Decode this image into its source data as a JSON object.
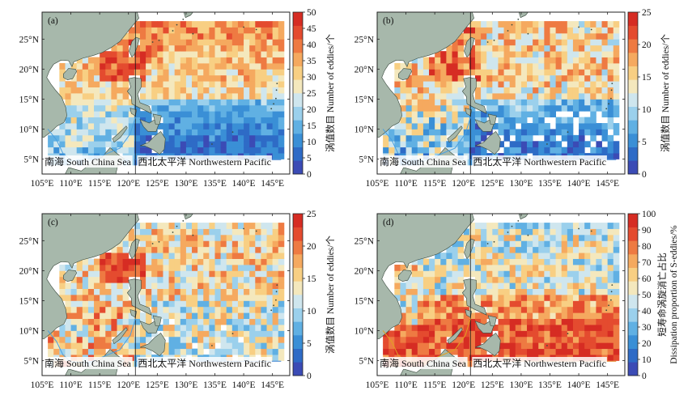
{
  "chart_data": [
    {
      "type": "heatmap",
      "panel_label": "(a)",
      "title": "",
      "xlabel": "",
      "ylabel": "",
      "xlim": [
        105,
        148
      ],
      "ylim": [
        2.5,
        29.5
      ],
      "x_ticks": [
        "105°E",
        "110°E",
        "115°E",
        "120°E",
        "125°E",
        "130°E",
        "135°E",
        "140°E",
        "145°E"
      ],
      "y_ticks": [
        "5°N",
        "10°N",
        "15°N",
        "20°N",
        "25°N"
      ],
      "region_labels": [
        "南海 South China Sea",
        "西北太平洋 Northwestern Pacific"
      ],
      "colorbar": {
        "min": 0,
        "max": 50,
        "ticks": [
          "0",
          "5",
          "10",
          "15",
          "20",
          "25",
          "30",
          "35",
          "40",
          "45",
          "50"
        ],
        "label": "涡值数目 Number of eddies/个"
      },
      "grid_cell_deg": 1,
      "description": "Counts decrease from ~30-45 near 20-22°N (Luzon Strait) to ~5-10 south of 15°N in the western Pacific"
    },
    {
      "type": "heatmap",
      "panel_label": "(b)",
      "title": "",
      "xlabel": "",
      "ylabel": "",
      "xlim": [
        105,
        148
      ],
      "ylim": [
        2.5,
        29.5
      ],
      "x_ticks": [
        "105°E",
        "110°E",
        "115°E",
        "120°E",
        "125°E",
        "130°E",
        "135°E",
        "140°E",
        "145°E"
      ],
      "y_ticks": [
        "5°N",
        "10°N",
        "15°N",
        "20°N",
        "25°N"
      ],
      "region_labels": [
        "南海 South China Sea",
        "西北太平洋 Northwestern Pacific"
      ],
      "colorbar": {
        "min": 0,
        "max": 25,
        "ticks": [
          "0",
          "5",
          "10",
          "15",
          "20",
          "25"
        ],
        "label": "涡值数目 Number of eddies/个"
      },
      "grid_cell_deg": 1,
      "description": "Counts ~15-25 north of 18°N, ~0-5 south of 13°N in the Pacific, with empty cells"
    },
    {
      "type": "heatmap",
      "panel_label": "(c)",
      "title": "",
      "xlabel": "",
      "ylabel": "",
      "xlim": [
        105,
        148
      ],
      "ylim": [
        2.5,
        29.5
      ],
      "x_ticks": [
        "105°E",
        "110°E",
        "115°E",
        "120°E",
        "125°E",
        "130°E",
        "135°E",
        "140°E",
        "145°E"
      ],
      "y_ticks": [
        "5°N",
        "10°N",
        "15°N",
        "20°N",
        "25°N"
      ],
      "region_labels": [
        "南海 South China Sea",
        "西北太平洋 Northwestern Pacific"
      ],
      "colorbar": {
        "min": 0,
        "max": 25,
        "ticks": [
          "0",
          "5",
          "10",
          "15",
          "20",
          "25"
        ],
        "label": "涡值数目 Number of eddies/个"
      },
      "grid_cell_deg": 1,
      "description": "Counts ~20-25 near Luzon Strait, ~10-18 elsewhere"
    },
    {
      "type": "heatmap",
      "panel_label": "(d)",
      "title": "",
      "xlabel": "",
      "ylabel": "",
      "xlim": [
        105,
        148
      ],
      "ylim": [
        2.5,
        29.5
      ],
      "x_ticks": [
        "105°E",
        "110°E",
        "115°E",
        "120°E",
        "125°E",
        "130°E",
        "135°E",
        "140°E",
        "145°E"
      ],
      "y_ticks": [
        "5°N",
        "10°N",
        "15°N",
        "20°N",
        "25°N"
      ],
      "region_labels": [
        "南海 South China Sea",
        "西北太平洋 Northwestern Pacific"
      ],
      "colorbar": {
        "min": 0,
        "max": 100,
        "ticks": [
          "0",
          "10",
          "20",
          "30",
          "40",
          "50",
          "60",
          "70",
          "80",
          "90",
          "100"
        ],
        "label": "短寿命涡旋消亡占比 Dissipation proportion of S-eddies/%"
      },
      "grid_cell_deg": 1,
      "description": "Proportion ~80-100% south of 15°N, ~30-60% north of 18°N"
    }
  ],
  "colors": {
    "land": "#a7b8ab",
    "coast": "#3a4a3e",
    "frame": "#222222",
    "scs_boundary": "#3a4a3e",
    "colormap": [
      "#3b4bb5",
      "#2e6bc6",
      "#3a8fd6",
      "#60b0e3",
      "#9bd0ec",
      "#cfe6ee",
      "#f4e8bd",
      "#f8cf83",
      "#f5a95f",
      "#ee7a42",
      "#e44b2f",
      "#d62c23"
    ]
  },
  "icons": [
    "land-shape",
    "coastline"
  ]
}
